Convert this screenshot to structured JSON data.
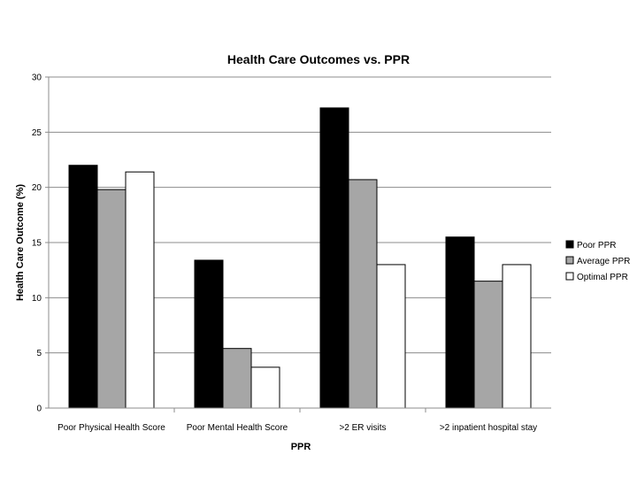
{
  "chart_data": {
    "type": "bar",
    "title": "Health Care Outcomes vs. PPR",
    "xlabel": "PPR",
    "ylabel": "Health Care Outcome (%)",
    "ylim": [
      0,
      30
    ],
    "yticks": [
      0,
      5,
      10,
      15,
      20,
      25,
      30
    ],
    "grid": true,
    "legend_position": "right",
    "categories": [
      "Poor Physical Health Score",
      "Poor Mental Health Score",
      ">2 ER visits",
      ">2 inpatient hospital stay"
    ],
    "series": [
      {
        "name": "Poor PPR",
        "color": "#000000",
        "values": [
          22.0,
          13.4,
          27.2,
          15.5
        ]
      },
      {
        "name": "Average PPR",
        "color": "#a6a6a6",
        "values": [
          19.8,
          5.4,
          20.7,
          11.5
        ]
      },
      {
        "name": "Optimal PPR",
        "color": "#ffffff",
        "values": [
          21.4,
          3.7,
          13.0,
          13.0
        ]
      }
    ]
  }
}
